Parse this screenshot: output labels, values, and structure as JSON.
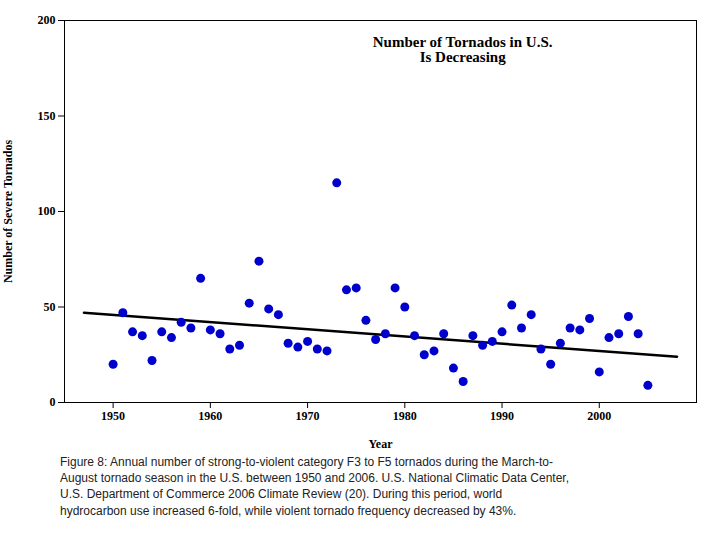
{
  "chart_data": {
    "type": "scatter",
    "x": [
      1950,
      1951,
      1952,
      1953,
      1954,
      1955,
      1956,
      1957,
      1958,
      1959,
      1960,
      1961,
      1962,
      1963,
      1964,
      1965,
      1966,
      1967,
      1968,
      1969,
      1970,
      1971,
      1972,
      1973,
      1974,
      1975,
      1976,
      1977,
      1978,
      1979,
      1980,
      1981,
      1982,
      1983,
      1984,
      1985,
      1986,
      1987,
      1988,
      1989,
      1990,
      1991,
      1992,
      1993,
      1994,
      1995,
      1996,
      1997,
      1998,
      1999,
      2000,
      2001,
      2002,
      2003,
      2004,
      2005
    ],
    "values": [
      20,
      47,
      37,
      35,
      22,
      37,
      34,
      42,
      39,
      65,
      38,
      36,
      28,
      30,
      52,
      74,
      49,
      46,
      31,
      29,
      32,
      28,
      27,
      115,
      59,
      60,
      43,
      33,
      36,
      60,
      50,
      35,
      25,
      27,
      36,
      18,
      11,
      35,
      30,
      32,
      37,
      51,
      39,
      46,
      28,
      20,
      31,
      39,
      38,
      44,
      16,
      34,
      36,
      45,
      36,
      9
    ],
    "color": "#0000CC",
    "trend": {
      "x": [
        1947,
        2008
      ],
      "values": [
        47,
        24
      ],
      "color": "#000000"
    },
    "xlabel": "Year",
    "ylabel": "Number of Severe Tornados",
    "xlim": [
      1945,
      2010
    ],
    "ylim": [
      0,
      200
    ],
    "xticks": [
      1950,
      1960,
      1970,
      1980,
      1990,
      2000
    ],
    "yticks": [
      0,
      50,
      100,
      150,
      200
    ],
    "grid": false,
    "annotations": [
      "Number of Tornados in U.S.",
      "Is Decreasing"
    ],
    "caption": "Figure 8: Annual number of strong-to-violent category F3 to F5 tornados during the March-to-\nAugust tornado season in the U.S. between 1950 and 2006. U.S. National Climatic Data Center,\nU.S. Department of Commerce 2006 Climate Review (20). During this period, world\nhydrocarbon use increased 6-fold, while violent tornado frequency decreased by 43%."
  }
}
